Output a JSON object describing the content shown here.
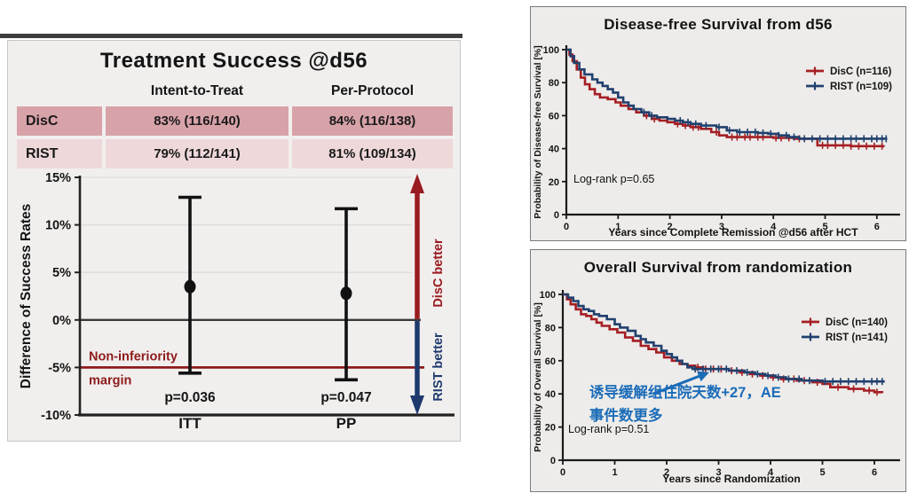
{
  "left_panel": {
    "table": {
      "col_headers": [
        "Intent-to-Treat",
        "Per-Protocol"
      ],
      "rows": [
        {
          "label": "DisC",
          "itt": "83% (116/140)",
          "pp": "84% (116/138)",
          "bg": "#d8a2a9"
        },
        {
          "label": "RIST",
          "itt": "79% (112/141)",
          "pp": "81% (109/134)",
          "bg": "#eed8da"
        }
      ]
    }
  },
  "chart_data": [
    {
      "id": "forest",
      "type": "scatter",
      "title": "Treatment Success @d56",
      "ylabel": "Difference of Success Rates",
      "ylim": [
        -10,
        15
      ],
      "yticks": [
        15,
        10,
        5,
        0,
        -5,
        -10
      ],
      "ytick_suffix": "%",
      "grid": "horizontal-light",
      "categories": [
        "ITT",
        "PP"
      ],
      "points": [
        {
          "category": "ITT",
          "estimate": 3.5,
          "ci_low": -5.6,
          "ci_high": 12.9,
          "p_label": "p=0.036"
        },
        {
          "category": "PP",
          "estimate": 2.8,
          "ci_low": -6.3,
          "ci_high": 11.7,
          "p_label": "p=0.047"
        }
      ],
      "zero_line": 0,
      "margin_line": -5,
      "margin_label_line1": "Non-inferiority",
      "margin_label_line2": "margin",
      "up_arrow_label": "DisC better",
      "down_arrow_label": "RIST better",
      "colors": {
        "up_arrow": "#9a1b20",
        "down_arrow": "#1e3a6d",
        "margin": "#8e1b1b",
        "marker": "#111111"
      }
    },
    {
      "id": "dfs",
      "type": "line",
      "title": "Disease-free Survival from d56",
      "xlabel": "Years since Complete Remission @d56 after HCT",
      "ylabel": "Probability of Disease-free Survival [%]",
      "xlim": [
        0,
        6.3
      ],
      "ylim": [
        0,
        100
      ],
      "xticks": [
        0,
        1,
        2,
        3,
        4,
        5,
        6
      ],
      "yticks": [
        0,
        20,
        40,
        60,
        80,
        100
      ],
      "stat_label": "Log-rank p=0.65",
      "legend_position": "top-right",
      "series": [
        {
          "name": "DisC (n=116)",
          "color": "#a51e23",
          "points": [
            [
              0,
              100
            ],
            [
              0.06,
              97
            ],
            [
              0.12,
              93
            ],
            [
              0.2,
              88
            ],
            [
              0.28,
              83
            ],
            [
              0.36,
              79
            ],
            [
              0.45,
              76
            ],
            [
              0.55,
              73
            ],
            [
              0.65,
              71
            ],
            [
              0.8,
              70
            ],
            [
              0.95,
              68
            ],
            [
              1.05,
              66
            ],
            [
              1.2,
              64
            ],
            [
              1.35,
              62
            ],
            [
              1.5,
              60
            ],
            [
              1.65,
              58
            ],
            [
              1.8,
              57
            ],
            [
              1.95,
              56
            ],
            [
              2.1,
              55
            ],
            [
              2.25,
              54
            ],
            [
              2.4,
              53
            ],
            [
              2.6,
              52
            ],
            [
              2.8,
              50
            ],
            [
              2.95,
              48
            ],
            [
              3.1,
              47
            ],
            [
              3.6,
              47
            ],
            [
              4.0,
              46.5
            ],
            [
              4.4,
              46
            ],
            [
              4.85,
              42
            ],
            [
              5.5,
              41.5
            ],
            [
              6.15,
              41.5
            ]
          ],
          "censor_x": [
            1.55,
            1.7,
            2.15,
            2.3,
            2.45,
            2.55,
            2.9,
            3.2,
            3.3,
            3.45,
            3.55,
            3.7,
            3.8,
            4.05,
            4.15,
            4.3,
            4.5,
            4.95,
            5.05,
            5.2,
            5.35,
            5.5,
            5.65,
            5.8,
            5.95,
            6.1
          ]
        },
        {
          "name": "RIST (n=109)",
          "color": "#20406e",
          "points": [
            [
              0,
              100
            ],
            [
              0.08,
              96
            ],
            [
              0.15,
              92
            ],
            [
              0.25,
              88
            ],
            [
              0.35,
              85
            ],
            [
              0.5,
              82
            ],
            [
              0.6,
              80
            ],
            [
              0.7,
              78
            ],
            [
              0.8,
              76
            ],
            [
              0.9,
              74
            ],
            [
              1.0,
              71
            ],
            [
              1.1,
              68
            ],
            [
              1.2,
              66
            ],
            [
              1.3,
              64
            ],
            [
              1.45,
              62
            ],
            [
              1.6,
              60
            ],
            [
              1.75,
              59
            ],
            [
              1.95,
              58
            ],
            [
              2.1,
              57
            ],
            [
              2.25,
              56
            ],
            [
              2.4,
              55
            ],
            [
              2.6,
              54
            ],
            [
              2.9,
              53
            ],
            [
              3.1,
              51
            ],
            [
              3.3,
              50
            ],
            [
              3.7,
              49.5
            ],
            [
              3.9,
              49
            ],
            [
              4.1,
              48
            ],
            [
              4.3,
              47
            ],
            [
              4.5,
              46
            ],
            [
              6.2,
              46
            ]
          ],
          "censor_x": [
            1.5,
            1.65,
            2.2,
            2.35,
            2.5,
            2.7,
            2.95,
            3.15,
            3.35,
            3.5,
            3.65,
            3.8,
            3.95,
            4.1,
            4.25,
            4.4,
            4.6,
            4.75,
            4.9,
            5.05,
            5.2,
            5.35,
            5.5,
            5.6,
            5.75,
            5.9,
            6.0,
            6.1,
            6.18
          ]
        }
      ]
    },
    {
      "id": "os",
      "type": "line",
      "title": "Overall Survival from randomization",
      "xlabel": "Years since Randomization",
      "ylabel": "Probability of Overall Survival [%]",
      "xlim": [
        0,
        6.3
      ],
      "ylim": [
        0,
        100
      ],
      "xticks": [
        0,
        1,
        2,
        3,
        4,
        5,
        6
      ],
      "yticks": [
        0,
        20,
        40,
        60,
        80,
        100
      ],
      "stat_label": "Log-rank p=0.51",
      "legend_position": "top-right",
      "series": [
        {
          "name": "DisC (n=140)",
          "color": "#a51e23",
          "points": [
            [
              0,
              100
            ],
            [
              0.08,
              97
            ],
            [
              0.15,
              94
            ],
            [
              0.25,
              91
            ],
            [
              0.35,
              88
            ],
            [
              0.45,
              87
            ],
            [
              0.55,
              85
            ],
            [
              0.65,
              83
            ],
            [
              0.75,
              81
            ],
            [
              0.9,
              79
            ],
            [
              1.05,
              77
            ],
            [
              1.2,
              74
            ],
            [
              1.35,
              72
            ],
            [
              1.5,
              69
            ],
            [
              1.65,
              67
            ],
            [
              1.8,
              65
            ],
            [
              1.95,
              62
            ],
            [
              2.1,
              60
            ],
            [
              2.25,
              58
            ],
            [
              2.4,
              57
            ],
            [
              2.55,
              56
            ],
            [
              2.7,
              55
            ],
            [
              3.0,
              55
            ],
            [
              3.2,
              54
            ],
            [
              3.4,
              53
            ],
            [
              3.6,
              52
            ],
            [
              3.8,
              51
            ],
            [
              4.0,
              50
            ],
            [
              4.2,
              49
            ],
            [
              4.5,
              48
            ],
            [
              4.8,
              47
            ],
            [
              5.0,
              46
            ],
            [
              5.15,
              44
            ],
            [
              5.5,
              43
            ],
            [
              5.8,
              42
            ],
            [
              6.0,
              41
            ],
            [
              6.15,
              40.5
            ]
          ],
          "censor_x": [
            2.6,
            2.75,
            2.9,
            3.05,
            3.25,
            3.45,
            3.65,
            3.85,
            4.05,
            4.25,
            4.45,
            4.65,
            4.9,
            5.3,
            5.6,
            5.9,
            6.05
          ]
        },
        {
          "name": "RIST (n=141)",
          "color": "#20406e",
          "points": [
            [
              0,
              100
            ],
            [
              0.1,
              98
            ],
            [
              0.2,
              96
            ],
            [
              0.3,
              93
            ],
            [
              0.4,
              91
            ],
            [
              0.5,
              90
            ],
            [
              0.6,
              88
            ],
            [
              0.7,
              87
            ],
            [
              0.85,
              85
            ],
            [
              1.0,
              82
            ],
            [
              1.1,
              80
            ],
            [
              1.25,
              78
            ],
            [
              1.4,
              75
            ],
            [
              1.5,
              73
            ],
            [
              1.6,
              71
            ],
            [
              1.75,
              69
            ],
            [
              1.9,
              66
            ],
            [
              2.0,
              64
            ],
            [
              2.1,
              62
            ],
            [
              2.2,
              60
            ],
            [
              2.3,
              58
            ],
            [
              2.4,
              56
            ],
            [
              2.5,
              55
            ],
            [
              3.0,
              55
            ],
            [
              3.2,
              54
            ],
            [
              3.5,
              53
            ],
            [
              3.7,
              52
            ],
            [
              3.9,
              51
            ],
            [
              4.1,
              50
            ],
            [
              4.3,
              49
            ],
            [
              4.6,
              48
            ],
            [
              5.0,
              47.5
            ],
            [
              6.2,
              47.5
            ]
          ],
          "censor_x": [
            2.55,
            2.7,
            2.85,
            3.0,
            3.15,
            3.35,
            3.55,
            3.75,
            3.95,
            4.15,
            4.35,
            4.55,
            4.75,
            5.05,
            5.2,
            5.35,
            5.5,
            5.65,
            5.8,
            5.95,
            6.05,
            6.15
          ]
        }
      ],
      "callout": {
        "lines": [
          "诱导缓解组住院天数+27，AE",
          "事件数更多"
        ],
        "color": "#1b6cb8"
      }
    }
  ]
}
